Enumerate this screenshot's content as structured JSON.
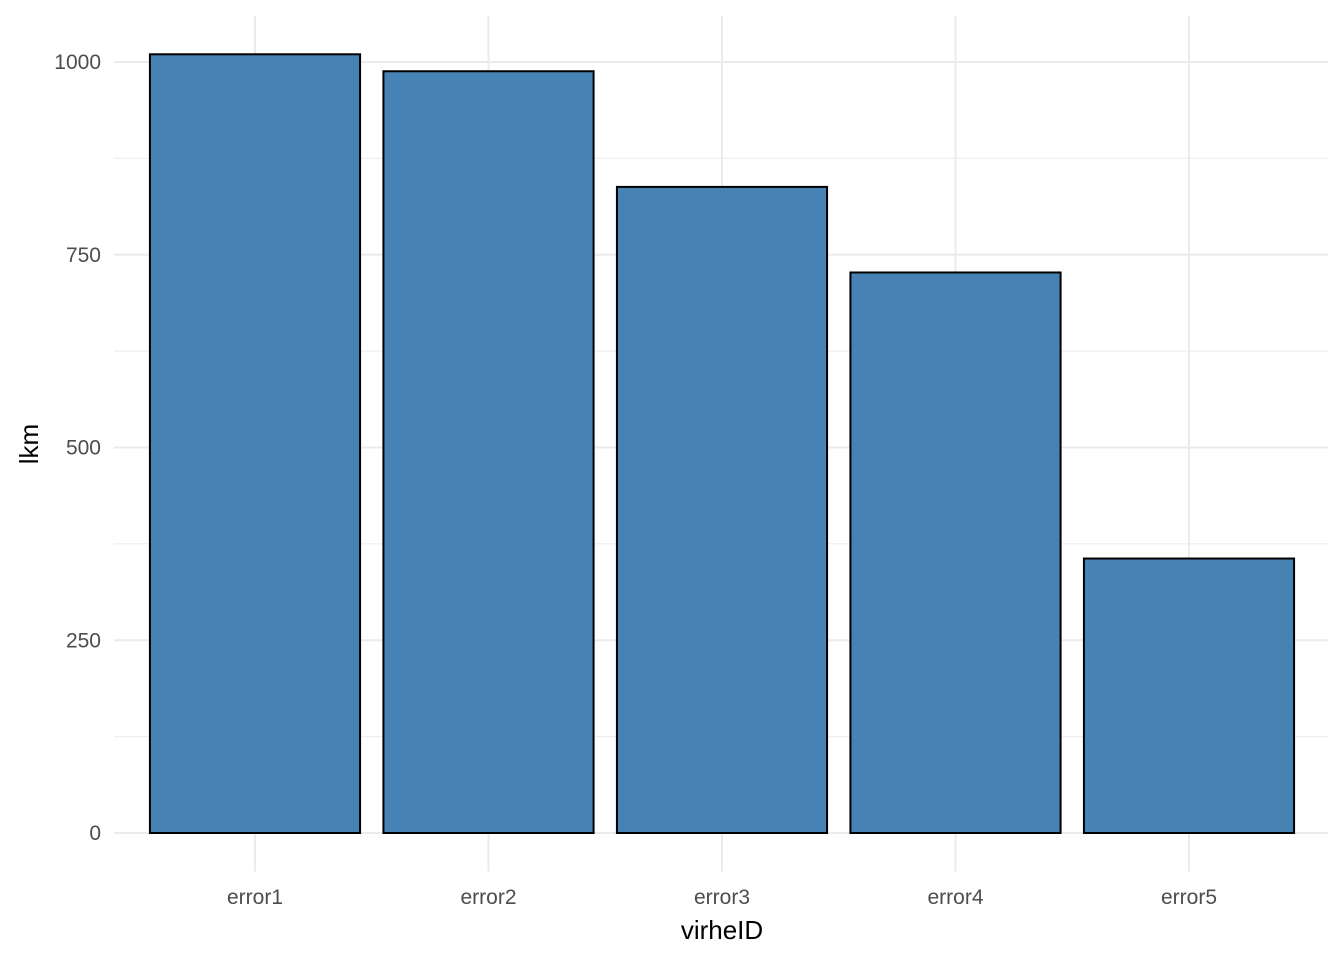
{
  "chart_data": {
    "type": "bar",
    "categories": [
      "error1",
      "error2",
      "error3",
      "error4",
      "error5"
    ],
    "values": [
      1010,
      988,
      838,
      727,
      356
    ],
    "xlabel": "virheID",
    "ylabel": "lkm",
    "ylim": [
      -50,
      1060
    ],
    "yticks": [
      0,
      250,
      500,
      750,
      1000
    ],
    "grid": true,
    "bar_fill": "#4682B4",
    "bar_stroke": "#000000",
    "grid_color": "#ebebeb"
  }
}
